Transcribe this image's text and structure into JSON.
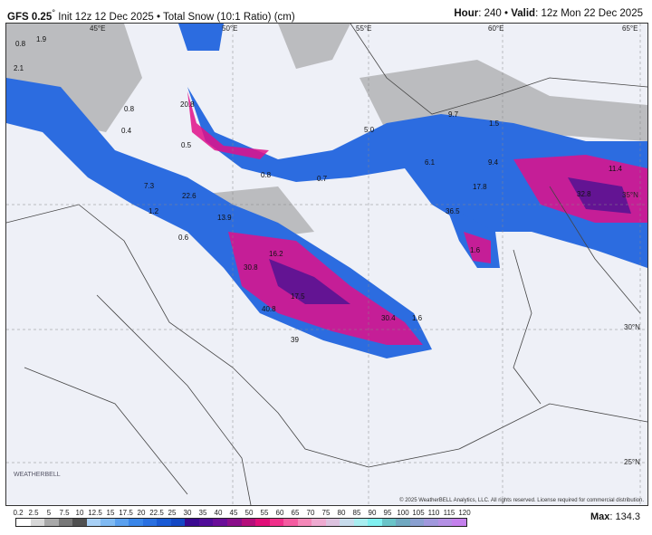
{
  "header": {
    "model": "GFS 0.25",
    "init": "Init 12z 12 Dec 2025",
    "product": "Total Snow (10:1 Ratio) (cm)",
    "hour_label": "Hour",
    "hour": "240",
    "valid_label": "Valid",
    "valid": "12z Mon 22 Dec 2025"
  },
  "map": {
    "lon_labels": [
      "45°E",
      "50°E",
      "55°E",
      "60°E",
      "65°E"
    ],
    "lat_labels": [
      "35°N",
      "30°N",
      "25°N"
    ],
    "values": [
      "0.8",
      "1.9",
      "2.1",
      "0.8",
      "0.4",
      "20.8",
      "0.5",
      "7.3",
      "22.6",
      "1.2",
      "0.6",
      "13.9",
      "16.2",
      "30.8",
      "17.5",
      "40.8",
      "39",
      "30.4",
      "1.6",
      "0.8",
      "0.7",
      "5.0",
      "9.7",
      "1.5",
      "6.1",
      "9.4",
      "17.8",
      "11.4",
      "32.8",
      "36.5",
      "1.6",
      "2.6"
    ],
    "copyright": "© 2025 WeatherBELL Analytics, LLC. All rights reserved. License required for commercial distribution.",
    "logo": "WeatherBELL"
  },
  "legend": {
    "ticks": [
      "0.2",
      "2.5",
      "5",
      "7.5",
      "10",
      "12.5",
      "15",
      "17.5",
      "20",
      "22.5",
      "25",
      "30",
      "35",
      "40",
      "45",
      "50",
      "55",
      "60",
      "65",
      "70",
      "75",
      "80",
      "85",
      "90",
      "95",
      "100",
      "105",
      "110",
      "115",
      "120"
    ],
    "colors": [
      "#ffffff",
      "#d8d8d8",
      "#a8a8a8",
      "#787878",
      "#505050",
      "#a8d0f5",
      "#80baf2",
      "#5aa0ee",
      "#3a86e8",
      "#2a70e0",
      "#1a5ad4",
      "#1448c4",
      "#3a0a90",
      "#500c98",
      "#6a0e98",
      "#8a0e8a",
      "#b40e7a",
      "#e00e78",
      "#f0308a",
      "#f45ca0",
      "#f488b8",
      "#eeaad0",
      "#dcc2de",
      "#c8dcec",
      "#a8eef0",
      "#80f0f0",
      "#6ac4c8",
      "#70a8c0",
      "#8aa0d0",
      "#a098dc",
      "#b490e4",
      "#c480ec"
    ],
    "max_label": "Max",
    "max": "134.3"
  }
}
